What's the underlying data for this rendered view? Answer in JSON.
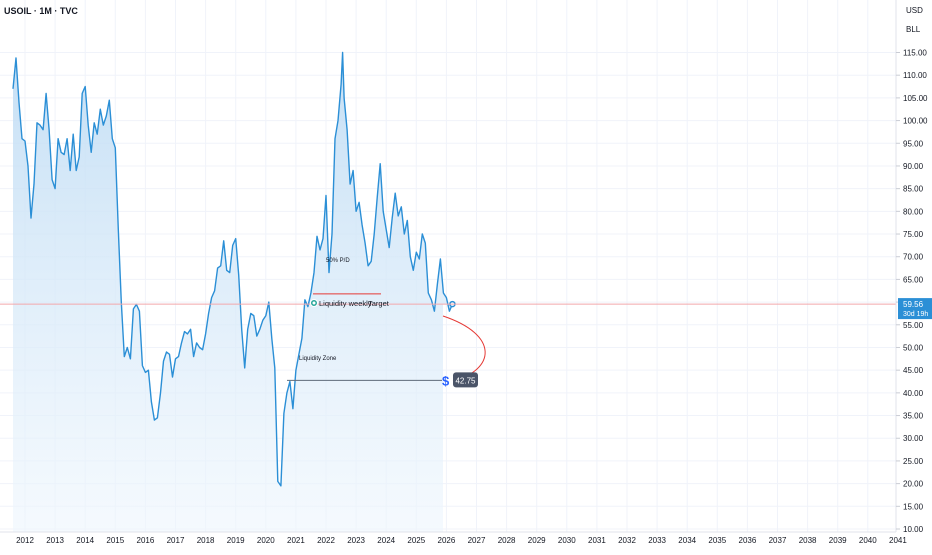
{
  "header": {
    "symbol_title": "USOIL · 1M · TVC",
    "currency": "USD",
    "unit": "BLL"
  },
  "colors": {
    "line": "#2b8fd6",
    "fill_top": "#bfdcf4",
    "fill_bottom": "#eef6fd",
    "grid": "#f0f3fa",
    "price_line": "#f2a7ab",
    "current_badge": "#2b8fd6",
    "target_badge": "#4a5468",
    "annotation_red": "#e53935",
    "target_line": "#5f6b7a"
  },
  "chart_data": {
    "type": "line",
    "xlabel": "",
    "ylabel": "",
    "xlim": [
      2011.6,
      2040.6
    ],
    "ylim": [
      10,
      121
    ],
    "x_ticks": [
      "2012",
      "2013",
      "2014",
      "2015",
      "2016",
      "2017",
      "2018",
      "2019",
      "2020",
      "2021",
      "2022",
      "2023",
      "2024",
      "2025",
      "2026",
      "2027",
      "2028",
      "2029",
      "2030",
      "2031",
      "2032",
      "2033",
      "2034",
      "2035",
      "2036",
      "2037",
      "2038",
      "2039",
      "2040",
      "2041"
    ],
    "y_ticks": [
      "10.00",
      "15.00",
      "20.00",
      "25.00",
      "30.00",
      "35.00",
      "40.00",
      "45.00",
      "50.00",
      "55.00",
      "60.00",
      "65.00",
      "70.00",
      "75.00",
      "80.00",
      "85.00",
      "90.00",
      "95.00",
      "100.00",
      "105.00",
      "110.00",
      "115.00"
    ],
    "series": [
      {
        "values": [
          [
            2011.6,
            107
          ],
          [
            2011.7,
            113.8
          ],
          [
            2011.8,
            104
          ],
          [
            2011.9,
            96
          ],
          [
            2012.0,
            95.5
          ],
          [
            2012.1,
            90
          ],
          [
            2012.2,
            78.5
          ],
          [
            2012.3,
            86
          ],
          [
            2012.4,
            99.5
          ],
          [
            2012.5,
            99
          ],
          [
            2012.6,
            98
          ],
          [
            2012.7,
            106
          ],
          [
            2012.8,
            98
          ],
          [
            2012.9,
            87
          ],
          [
            2013.0,
            85
          ],
          [
            2013.1,
            96
          ],
          [
            2013.2,
            93
          ],
          [
            2013.3,
            92.5
          ],
          [
            2013.4,
            96
          ],
          [
            2013.5,
            89
          ],
          [
            2013.6,
            97
          ],
          [
            2013.7,
            89
          ],
          [
            2013.8,
            92
          ],
          [
            2013.9,
            106
          ],
          [
            2014.0,
            107.5
          ],
          [
            2014.1,
            99
          ],
          [
            2014.2,
            93
          ],
          [
            2014.3,
            99.5
          ],
          [
            2014.4,
            97
          ],
          [
            2014.5,
            102.5
          ],
          [
            2014.6,
            99
          ],
          [
            2014.7,
            101
          ],
          [
            2014.8,
            104.5
          ],
          [
            2014.9,
            96
          ],
          [
            2015.0,
            94
          ],
          [
            2015.1,
            76
          ],
          [
            2015.2,
            60
          ],
          [
            2015.25,
            54
          ],
          [
            2015.3,
            48
          ],
          [
            2015.4,
            50
          ],
          [
            2015.5,
            47.5
          ],
          [
            2015.6,
            58.5
          ],
          [
            2015.7,
            59.5
          ],
          [
            2015.8,
            58
          ],
          [
            2015.9,
            46
          ],
          [
            2016.0,
            44.5
          ],
          [
            2016.1,
            45
          ],
          [
            2016.2,
            38
          ],
          [
            2016.3,
            34
          ],
          [
            2016.4,
            34.5
          ],
          [
            2016.5,
            40
          ],
          [
            2016.6,
            47
          ],
          [
            2016.7,
            49
          ],
          [
            2016.8,
            48.5
          ],
          [
            2016.9,
            43.5
          ],
          [
            2017.0,
            47.5
          ],
          [
            2017.1,
            48
          ],
          [
            2017.2,
            51
          ],
          [
            2017.3,
            53.5
          ],
          [
            2017.4,
            53
          ],
          [
            2017.5,
            54
          ],
          [
            2017.6,
            48
          ],
          [
            2017.7,
            51
          ],
          [
            2017.8,
            50
          ],
          [
            2017.9,
            49.5
          ],
          [
            2018.0,
            53
          ],
          [
            2018.1,
            57.5
          ],
          [
            2018.2,
            61
          ],
          [
            2018.3,
            62.5
          ],
          [
            2018.4,
            67.5
          ],
          [
            2018.5,
            68
          ],
          [
            2018.6,
            73.5
          ],
          [
            2018.7,
            67
          ],
          [
            2018.8,
            66.5
          ],
          [
            2018.9,
            72.5
          ],
          [
            2019.0,
            74
          ],
          [
            2019.1,
            66
          ],
          [
            2019.2,
            54
          ],
          [
            2019.3,
            45.5
          ],
          [
            2019.4,
            54
          ],
          [
            2019.5,
            57.5
          ],
          [
            2019.6,
            57
          ],
          [
            2019.7,
            52.5
          ],
          [
            2019.8,
            54
          ],
          [
            2019.9,
            56
          ],
          [
            2020.0,
            57
          ],
          [
            2020.1,
            60
          ],
          [
            2020.2,
            52
          ],
          [
            2020.3,
            45.5
          ],
          [
            2020.4,
            20.5
          ],
          [
            2020.5,
            19.5
          ],
          [
            2020.6,
            35.5
          ],
          [
            2020.7,
            40
          ],
          [
            2020.8,
            42.5
          ],
          [
            2020.9,
            36.5
          ],
          [
            2021.0,
            45
          ],
          [
            2021.1,
            48.5
          ],
          [
            2021.2,
            52
          ],
          [
            2021.3,
            60.5
          ],
          [
            2021.4,
            59
          ],
          [
            2021.5,
            62
          ],
          [
            2021.6,
            66.5
          ],
          [
            2021.7,
            74.5
          ],
          [
            2021.8,
            71.5
          ],
          [
            2021.9,
            74
          ],
          [
            2022.0,
            83.5
          ],
          [
            2022.1,
            66.5
          ],
          [
            2022.2,
            75
          ],
          [
            2022.3,
            96
          ],
          [
            2022.4,
            100
          ],
          [
            2022.5,
            108
          ],
          [
            2022.55,
            115
          ],
          [
            2022.6,
            105
          ],
          [
            2022.7,
            98
          ],
          [
            2022.8,
            86
          ],
          [
            2022.9,
            89
          ],
          [
            2023.0,
            80
          ],
          [
            2023.1,
            82
          ],
          [
            2023.2,
            77
          ],
          [
            2023.3,
            73
          ],
          [
            2023.4,
            68
          ],
          [
            2023.5,
            69
          ],
          [
            2023.6,
            75
          ],
          [
            2023.7,
            83
          ],
          [
            2023.8,
            90.5
          ],
          [
            2023.9,
            80
          ],
          [
            2024.0,
            76
          ],
          [
            2024.1,
            72
          ],
          [
            2024.2,
            78.5
          ],
          [
            2024.3,
            84
          ],
          [
            2024.4,
            79
          ],
          [
            2024.5,
            81
          ],
          [
            2024.6,
            75
          ],
          [
            2024.7,
            78
          ],
          [
            2024.8,
            70
          ],
          [
            2024.9,
            67
          ],
          [
            2025.0,
            71
          ],
          [
            2025.1,
            69.5
          ],
          [
            2025.2,
            75
          ],
          [
            2025.3,
            73
          ],
          [
            2025.4,
            62
          ],
          [
            2025.5,
            60.5
          ],
          [
            2025.6,
            58
          ],
          [
            2025.7,
            64
          ],
          [
            2025.8,
            69.5
          ],
          [
            2025.9,
            62
          ],
          [
            2026.0,
            61
          ],
          [
            2026.1,
            58
          ],
          [
            2026.2,
            59.56
          ]
        ]
      }
    ],
    "current_price": {
      "value": "59.56",
      "countdown": "30d 19h"
    },
    "annotations": {
      "pd_label": "50% P/D",
      "pd_line_value": 61.8,
      "liquidity_weekly_label": "Liquidity weekly",
      "target_label": "Target",
      "liquidity_zone_label": "Liquidity Zone",
      "target_value": 42.75,
      "target_badge_text": "42.75",
      "target_icon": "dollar-icon"
    }
  }
}
